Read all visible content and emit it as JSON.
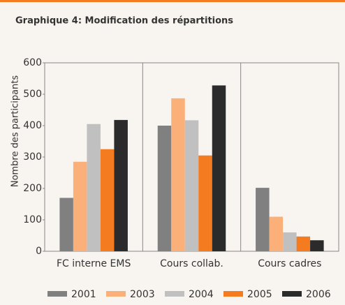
{
  "chart_data": {
    "type": "bar",
    "title": "Graphique 4: Modification des répartitions",
    "y_label": "Nombre des participants",
    "categories": [
      "FC interne EMS",
      "Cours collab.",
      "Cours cadres"
    ],
    "series": [
      {
        "name": "2001",
        "color": "#808080",
        "values": [
          170,
          400,
          202
        ]
      },
      {
        "name": "2003",
        "color": "#fbb07a",
        "values": [
          285,
          487,
          110
        ]
      },
      {
        "name": "2004",
        "color": "#c0c0c0",
        "values": [
          405,
          417,
          60
        ]
      },
      {
        "name": "2005",
        "color": "#f47b20",
        "values": [
          325,
          305,
          47
        ]
      },
      {
        "name": "2006",
        "color": "#2b2b2b",
        "values": [
          418,
          528,
          35
        ]
      }
    ],
    "ylim": [
      0,
      600
    ],
    "yticks": [
      0,
      100,
      200,
      300,
      400,
      500,
      600
    ]
  }
}
